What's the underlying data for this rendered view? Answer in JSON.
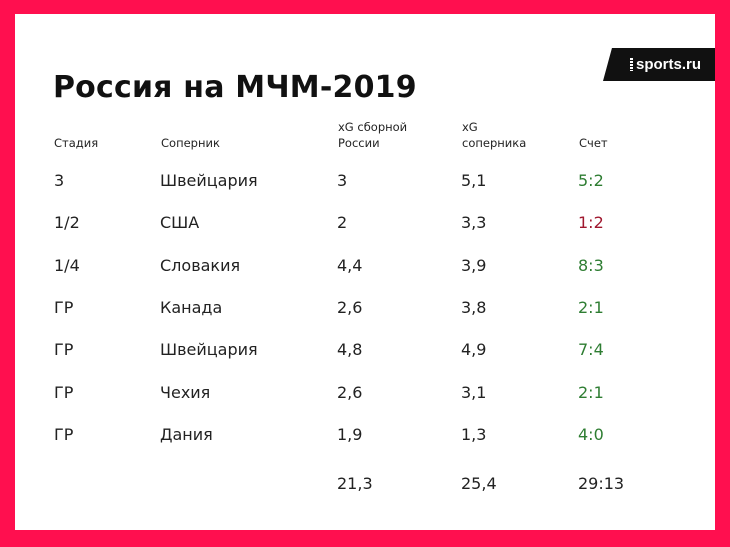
{
  "title": "Россия на МЧМ-2019",
  "logo": "sports.ru",
  "colors": {
    "frame": "#ff0f4f",
    "win": "#2e7d32",
    "loss": "#a0182f"
  },
  "headers": {
    "stage": "Стадия",
    "opponent": "Соперник",
    "xg_russia": "xG сборной\nРоссии",
    "xg_opponent": "xG\nсоперника",
    "score": "Счет"
  },
  "rows": [
    {
      "stage": "3",
      "opponent": "Швейцария",
      "xg_russia": "3",
      "xg_opponent": "5,1",
      "score": "5:2",
      "result": "win"
    },
    {
      "stage": "1/2",
      "opponent": "США",
      "xg_russia": "2",
      "xg_opponent": "3,3",
      "score": "1:2",
      "result": "loss"
    },
    {
      "stage": "1/4",
      "opponent": "Словакия",
      "xg_russia": "4,4",
      "xg_opponent": "3,9",
      "score": "8:3",
      "result": "win"
    },
    {
      "stage": "ГР",
      "opponent": "Канада",
      "xg_russia": "2,6",
      "xg_opponent": "3,8",
      "score": "2:1",
      "result": "win"
    },
    {
      "stage": "ГР",
      "opponent": "Швейцария",
      "xg_russia": "4,8",
      "xg_opponent": "4,9",
      "score": "7:4",
      "result": "win"
    },
    {
      "stage": "ГР",
      "opponent": "Чехия",
      "xg_russia": "2,6",
      "xg_opponent": "3,1",
      "score": "2:1",
      "result": "win"
    },
    {
      "stage": "ГР",
      "opponent": "Дания",
      "xg_russia": "1,9",
      "xg_opponent": "1,3",
      "score": "4:0",
      "result": "win"
    }
  ],
  "totals": {
    "xg_russia": "21,3",
    "xg_opponent": "25,4",
    "score": "29:13"
  }
}
